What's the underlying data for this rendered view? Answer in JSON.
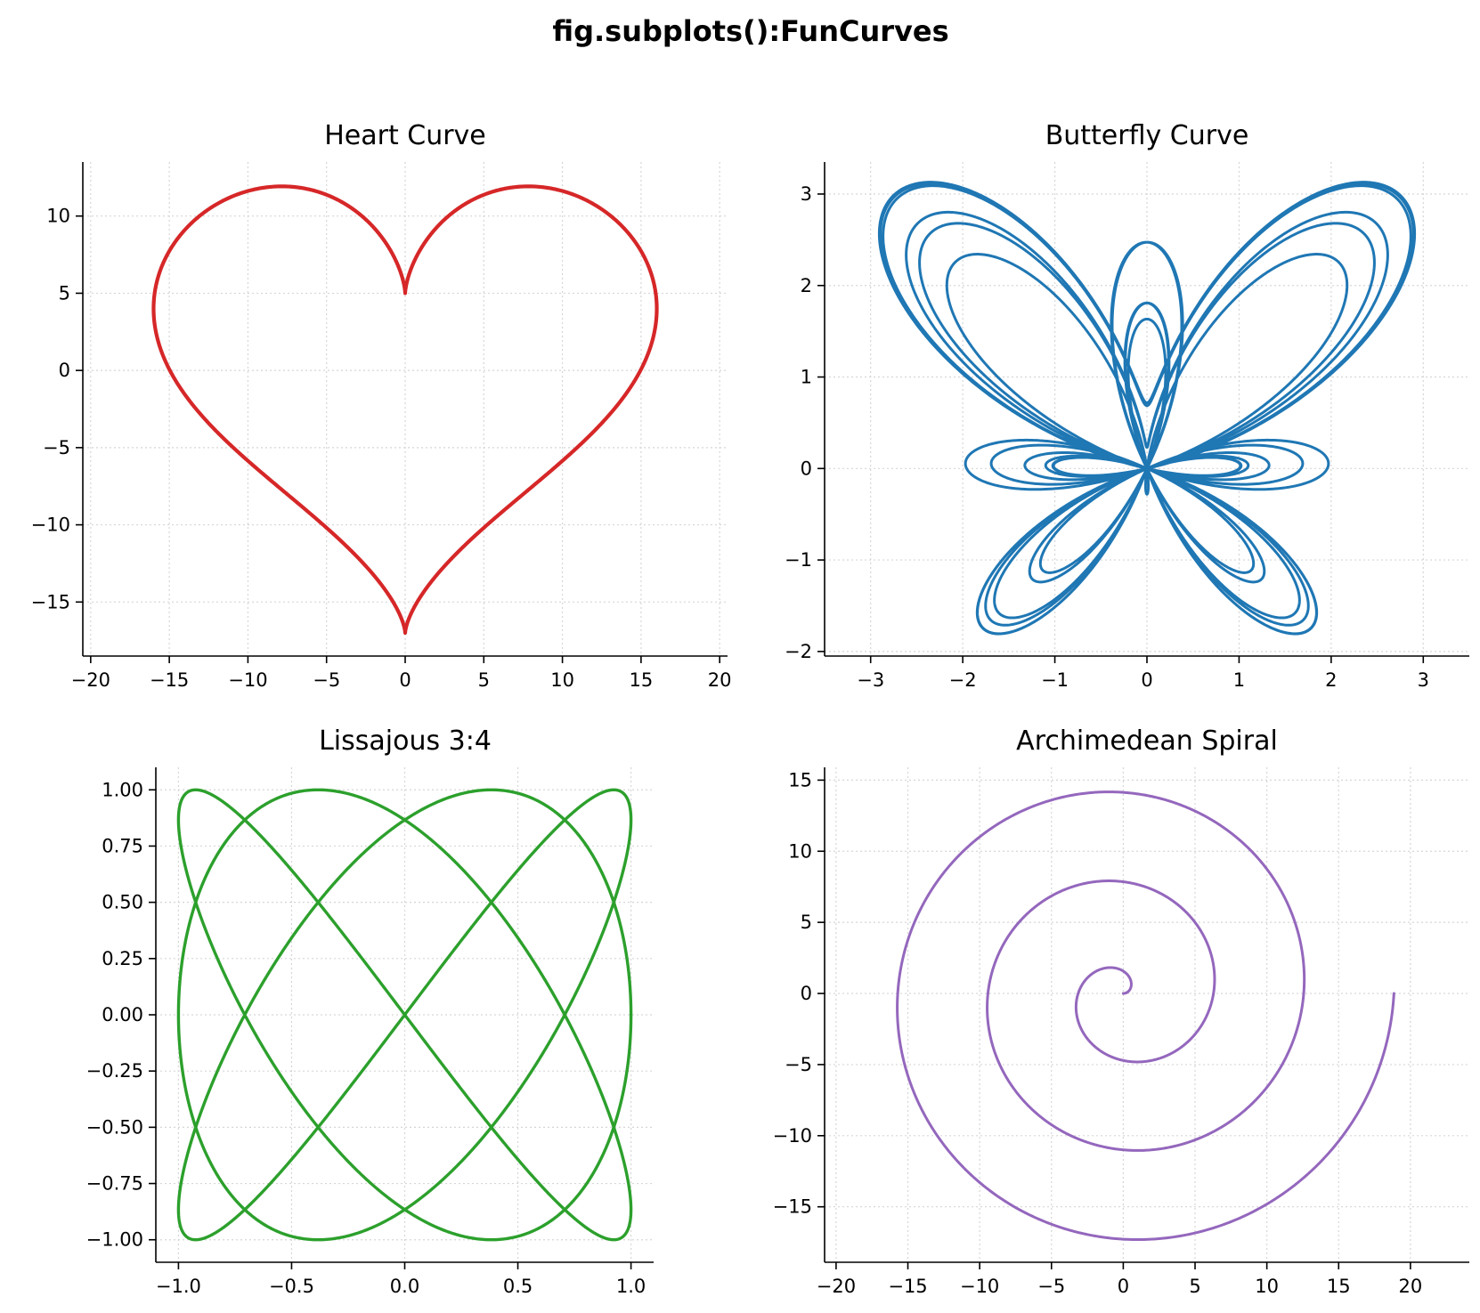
{
  "figure": {
    "suptitle": "fig.subplots():FunCurves"
  },
  "chart_data": [
    {
      "type": "line",
      "title": "Heart Curve",
      "curve": "heart",
      "equation": "x = 16 sin^3 t, y = 13 cos t - 5 cos 2t - 2 cos 3t - cos 4t",
      "xlabel": "",
      "ylabel": "",
      "xlim": [
        -20.5,
        20.5
      ],
      "ylim": [
        -18.5,
        13.5
      ],
      "xticks": [
        -20,
        -15,
        -10,
        -5,
        0,
        5,
        10,
        15,
        20
      ],
      "yticks": [
        -15,
        -10,
        -5,
        0,
        5,
        10
      ],
      "xtick_labels": [
        "−20",
        "−15",
        "−10",
        "−5",
        "0",
        "5",
        "10",
        "15",
        "20"
      ],
      "ytick_labels": [
        "−15",
        "−10",
        "−5",
        "0",
        "5",
        "10"
      ],
      "color": "#d62728",
      "grid": true
    },
    {
      "type": "line",
      "title": "Butterfly Curve",
      "curve": "butterfly",
      "equation": "r = e^cos t - 2 cos 4t - sin^5(t/12), t in [0, 12pi]",
      "xlabel": "",
      "ylabel": "",
      "xlim": [
        -3.5,
        3.5
      ],
      "ylim": [
        -2.05,
        3.35
      ],
      "xticks": [
        -3,
        -2,
        -1,
        0,
        1,
        2,
        3
      ],
      "yticks": [
        -2,
        -1,
        0,
        1,
        2,
        3
      ],
      "xtick_labels": [
        "−3",
        "−2",
        "−1",
        "0",
        "1",
        "2",
        "3"
      ],
      "ytick_labels": [
        "−2",
        "−1",
        "0",
        "1",
        "2",
        "3"
      ],
      "color": "#1f77b4",
      "grid": true
    },
    {
      "type": "line",
      "title": "Lissajous 3:4",
      "curve": "lissajous",
      "equation": "x = sin(3t + pi/2), y = sin(4t)",
      "xlabel": "",
      "ylabel": "",
      "xlim": [
        -1.1,
        1.1
      ],
      "ylim": [
        -1.1,
        1.1
      ],
      "xticks": [
        -1.0,
        -0.5,
        0.0,
        0.5,
        1.0
      ],
      "yticks": [
        -1.0,
        -0.75,
        -0.5,
        -0.25,
        0.0,
        0.25,
        0.5,
        0.75,
        1.0
      ],
      "xtick_labels": [
        "−1.0",
        "−0.5",
        "0.0",
        "0.5",
        "1.0"
      ],
      "ytick_labels": [
        "−1.00",
        "−0.75",
        "−0.50",
        "−0.25",
        "0.00",
        "0.25",
        "0.50",
        "0.75",
        "1.00"
      ],
      "color": "#2ca02c",
      "grid": true
    },
    {
      "type": "line",
      "title": "Archimedean Spiral",
      "curve": "spiral",
      "equation": "r = t, t in [0, 6pi]",
      "xlabel": "",
      "ylabel": "",
      "xlim": [
        -20.8,
        24.1
      ],
      "ylim": [
        -18.9,
        15.9
      ],
      "xticks": [
        -20,
        -15,
        -10,
        -5,
        0,
        5,
        10,
        15,
        20
      ],
      "yticks": [
        -15,
        -10,
        -5,
        0,
        5,
        10,
        15
      ],
      "xtick_labels": [
        "−20",
        "−15",
        "−10",
        "−5",
        "0",
        "5",
        "10",
        "15",
        "20"
      ],
      "ytick_labels": [
        "−15",
        "−10",
        "−5",
        "0",
        "5",
        "10",
        "15"
      ],
      "color": "#9467bd",
      "grid": true
    }
  ]
}
